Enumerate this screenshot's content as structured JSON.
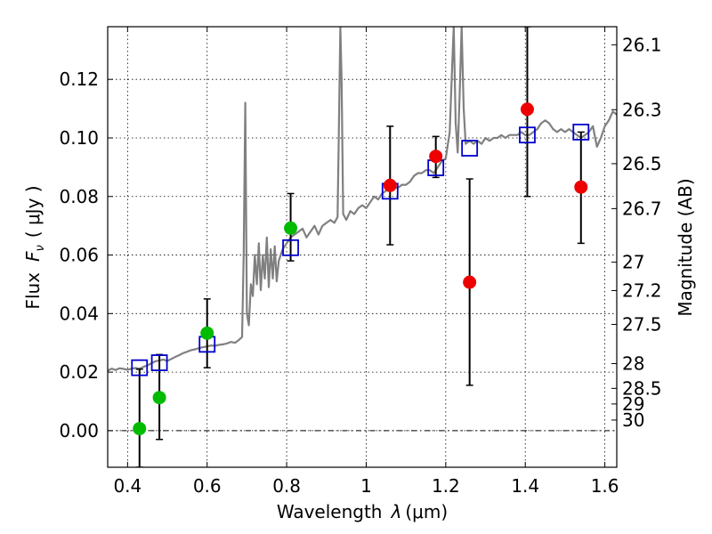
{
  "chart_data": {
    "type": "scatter",
    "xlabel_prefix": "Wavelength",
    "xlabel_var": "λ",
    "xlabel_unit": "(μm)",
    "ylabel_prefix": "Flux",
    "ylabel_var": "F",
    "ylabel_sub": "ν",
    "ylabel_unit": "( μJy )",
    "y2label": "Magnitude (AB)",
    "xlim": [
      0.35,
      1.63
    ],
    "ylim": [
      -0.0125,
      0.138
    ],
    "x_ticks": [
      {
        "v": 0.4,
        "label": "0.4"
      },
      {
        "v": 0.6,
        "label": "0.6"
      },
      {
        "v": 0.8,
        "label": "0.8"
      },
      {
        "v": 1.0,
        "label": "1"
      },
      {
        "v": 1.2,
        "label": "1.2"
      },
      {
        "v": 1.4,
        "label": "1.4"
      },
      {
        "v": 1.6,
        "label": "1.6"
      }
    ],
    "y_ticks": [
      {
        "v": 0.0,
        "label": "0.00"
      },
      {
        "v": 0.02,
        "label": "0.02"
      },
      {
        "v": 0.04,
        "label": "0.04"
      },
      {
        "v": 0.06,
        "label": "0.06"
      },
      {
        "v": 0.08,
        "label": "0.08"
      },
      {
        "v": 0.1,
        "label": "0.10"
      },
      {
        "v": 0.12,
        "label": "0.12"
      }
    ],
    "mag_ticks": [
      {
        "mag": 26.1,
        "label": "26.1"
      },
      {
        "mag": 26.3,
        "label": "26.3"
      },
      {
        "mag": 26.5,
        "label": "26.5"
      },
      {
        "mag": 26.7,
        "label": "26.7"
      },
      {
        "mag": 27.0,
        "label": "27"
      },
      {
        "mag": 27.2,
        "label": "27.2"
      },
      {
        "mag": 27.5,
        "label": "27.5"
      },
      {
        "mag": 28.0,
        "label": "28"
      },
      {
        "mag": 28.5,
        "label": "28.5"
      },
      {
        "mag": 29.0,
        "label": "29"
      },
      {
        "mag": 30.0,
        "label": "30"
      }
    ],
    "template_spectrum": {
      "color": "#808080",
      "points": [
        [
          0.35,
          0.0205
        ],
        [
          0.36,
          0.0212
        ],
        [
          0.37,
          0.0207
        ],
        [
          0.38,
          0.0213
        ],
        [
          0.39,
          0.0211
        ],
        [
          0.4,
          0.0208
        ],
        [
          0.41,
          0.0212
        ],
        [
          0.42,
          0.0214
        ],
        [
          0.43,
          0.0212
        ],
        [
          0.44,
          0.0218
        ],
        [
          0.45,
          0.0223
        ],
        [
          0.46,
          0.023
        ],
        [
          0.47,
          0.0237
        ],
        [
          0.48,
          0.024
        ],
        [
          0.49,
          0.0243
        ],
        [
          0.5,
          0.0238
        ],
        [
          0.51,
          0.0245
        ],
        [
          0.52,
          0.0252
        ],
        [
          0.53,
          0.0258
        ],
        [
          0.54,
          0.0265
        ],
        [
          0.55,
          0.027
        ],
        [
          0.56,
          0.0275
        ],
        [
          0.57,
          0.0278
        ],
        [
          0.58,
          0.0282
        ],
        [
          0.59,
          0.0285
        ],
        [
          0.6,
          0.0288
        ],
        [
          0.61,
          0.0291
        ],
        [
          0.62,
          0.029
        ],
        [
          0.63,
          0.0293
        ],
        [
          0.64,
          0.0295
        ],
        [
          0.65,
          0.0298
        ],
        [
          0.66,
          0.0303
        ],
        [
          0.67,
          0.03
        ],
        [
          0.68,
          0.031
        ],
        [
          0.688,
          0.032
        ],
        [
          0.692,
          0.06
        ],
        [
          0.696,
          0.112
        ],
        [
          0.7,
          0.04
        ],
        [
          0.705,
          0.036
        ],
        [
          0.71,
          0.05
        ],
        [
          0.715,
          0.046
        ],
        [
          0.72,
          0.06
        ],
        [
          0.725,
          0.05
        ],
        [
          0.73,
          0.064
        ],
        [
          0.735,
          0.048
        ],
        [
          0.74,
          0.06
        ],
        [
          0.745,
          0.052
        ],
        [
          0.75,
          0.066
        ],
        [
          0.755,
          0.049
        ],
        [
          0.76,
          0.062
        ],
        [
          0.765,
          0.052
        ],
        [
          0.77,
          0.063
        ],
        [
          0.775,
          0.051
        ],
        [
          0.78,
          0.058
        ],
        [
          0.79,
          0.062
        ],
        [
          0.8,
          0.064
        ],
        [
          0.81,
          0.066
        ],
        [
          0.82,
          0.067
        ],
        [
          0.83,
          0.068
        ],
        [
          0.84,
          0.069
        ],
        [
          0.85,
          0.066
        ],
        [
          0.86,
          0.068
        ],
        [
          0.87,
          0.07
        ],
        [
          0.88,
          0.067
        ],
        [
          0.89,
          0.07
        ],
        [
          0.9,
          0.071
        ],
        [
          0.91,
          0.072
        ],
        [
          0.92,
          0.071
        ],
        [
          0.928,
          0.073
        ],
        [
          0.932,
          0.11
        ],
        [
          0.935,
          0.138
        ],
        [
          0.938,
          0.12
        ],
        [
          0.942,
          0.074
        ],
        [
          0.95,
          0.072
        ],
        [
          0.96,
          0.075
        ],
        [
          0.97,
          0.074
        ],
        [
          0.98,
          0.076
        ],
        [
          0.99,
          0.077
        ],
        [
          1.0,
          0.076
        ],
        [
          1.01,
          0.078
        ],
        [
          1.02,
          0.08
        ],
        [
          1.03,
          0.079
        ],
        [
          1.04,
          0.081
        ],
        [
          1.05,
          0.082
        ],
        [
          1.06,
          0.082
        ],
        [
          1.07,
          0.083
        ],
        [
          1.08,
          0.083
        ],
        [
          1.09,
          0.084
        ],
        [
          1.1,
          0.084
        ],
        [
          1.11,
          0.085
        ],
        [
          1.12,
          0.087
        ],
        [
          1.13,
          0.088
        ],
        [
          1.14,
          0.088
        ],
        [
          1.15,
          0.089
        ],
        [
          1.16,
          0.089
        ],
        [
          1.17,
          0.088
        ],
        [
          1.18,
          0.09
        ],
        [
          1.19,
          0.092
        ],
        [
          1.2,
          0.093
        ],
        [
          1.21,
          0.102
        ],
        [
          1.215,
          0.12
        ],
        [
          1.22,
          0.138
        ],
        [
          1.225,
          0.105
        ],
        [
          1.23,
          0.095
        ],
        [
          1.235,
          0.115
        ],
        [
          1.24,
          0.138
        ],
        [
          1.245,
          0.11
        ],
        [
          1.25,
          0.098
        ],
        [
          1.26,
          0.099
        ],
        [
          1.27,
          0.098
        ],
        [
          1.28,
          0.099
        ],
        [
          1.29,
          0.098
        ],
        [
          1.3,
          0.1
        ],
        [
          1.31,
          0.099
        ],
        [
          1.32,
          0.1
        ],
        [
          1.33,
          0.1
        ],
        [
          1.34,
          0.101
        ],
        [
          1.35,
          0.1
        ],
        [
          1.36,
          0.101
        ],
        [
          1.37,
          0.101
        ],
        [
          1.38,
          0.101
        ],
        [
          1.39,
          0.102
        ],
        [
          1.4,
          0.101
        ],
        [
          1.41,
          0.101
        ],
        [
          1.42,
          0.102
        ],
        [
          1.43,
          0.103
        ],
        [
          1.44,
          0.105
        ],
        [
          1.45,
          0.106
        ],
        [
          1.46,
          0.105
        ],
        [
          1.47,
          0.103
        ],
        [
          1.48,
          0.102
        ],
        [
          1.49,
          0.103
        ],
        [
          1.5,
          0.102
        ],
        [
          1.51,
          0.103
        ],
        [
          1.52,
          0.102
        ],
        [
          1.53,
          0.101
        ],
        [
          1.54,
          0.1
        ],
        [
          1.55,
          0.101
        ],
        [
          1.56,
          0.102
        ],
        [
          1.57,
          0.104
        ],
        [
          1.58,
          0.097
        ],
        [
          1.59,
          0.1
        ],
        [
          1.6,
          0.104
        ],
        [
          1.61,
          0.106
        ],
        [
          1.62,
          0.109
        ],
        [
          1.63,
          0.108
        ]
      ]
    },
    "model_boxes": {
      "color": "#0000cc",
      "points": [
        {
          "x": 0.43,
          "y": 0.0215
        },
        {
          "x": 0.48,
          "y": 0.0232
        },
        {
          "x": 0.6,
          "y": 0.0295
        },
        {
          "x": 0.81,
          "y": 0.0625
        },
        {
          "x": 1.06,
          "y": 0.0818
        },
        {
          "x": 1.175,
          "y": 0.0898
        },
        {
          "x": 1.26,
          "y": 0.0965
        },
        {
          "x": 1.405,
          "y": 0.101
        },
        {
          "x": 1.54,
          "y": 0.102
        }
      ]
    },
    "optical_points": {
      "color": "#00bb00",
      "points": [
        {
          "x": 0.43,
          "y": 0.0007,
          "lo": -0.0125,
          "hi": 0.021
        },
        {
          "x": 0.48,
          "y": 0.0113,
          "lo": -0.003,
          "hi": 0.026
        },
        {
          "x": 0.6,
          "y": 0.0333,
          "lo": 0.0215,
          "hi": 0.045
        },
        {
          "x": 0.81,
          "y": 0.0692,
          "lo": 0.058,
          "hi": 0.081
        }
      ]
    },
    "nir_points": {
      "color": "#ee0000",
      "points": [
        {
          "x": 1.06,
          "y": 0.0838,
          "lo": 0.0635,
          "hi": 0.104
        },
        {
          "x": 1.175,
          "y": 0.0937,
          "lo": 0.0865,
          "hi": 0.1005
        },
        {
          "x": 1.26,
          "y": 0.0507,
          "lo": 0.0155,
          "hi": 0.086
        },
        {
          "x": 1.405,
          "y": 0.1098,
          "lo": 0.08,
          "hi": 0.138
        },
        {
          "x": 1.54,
          "y": 0.0832,
          "lo": 0.064,
          "hi": 0.102
        }
      ]
    }
  }
}
